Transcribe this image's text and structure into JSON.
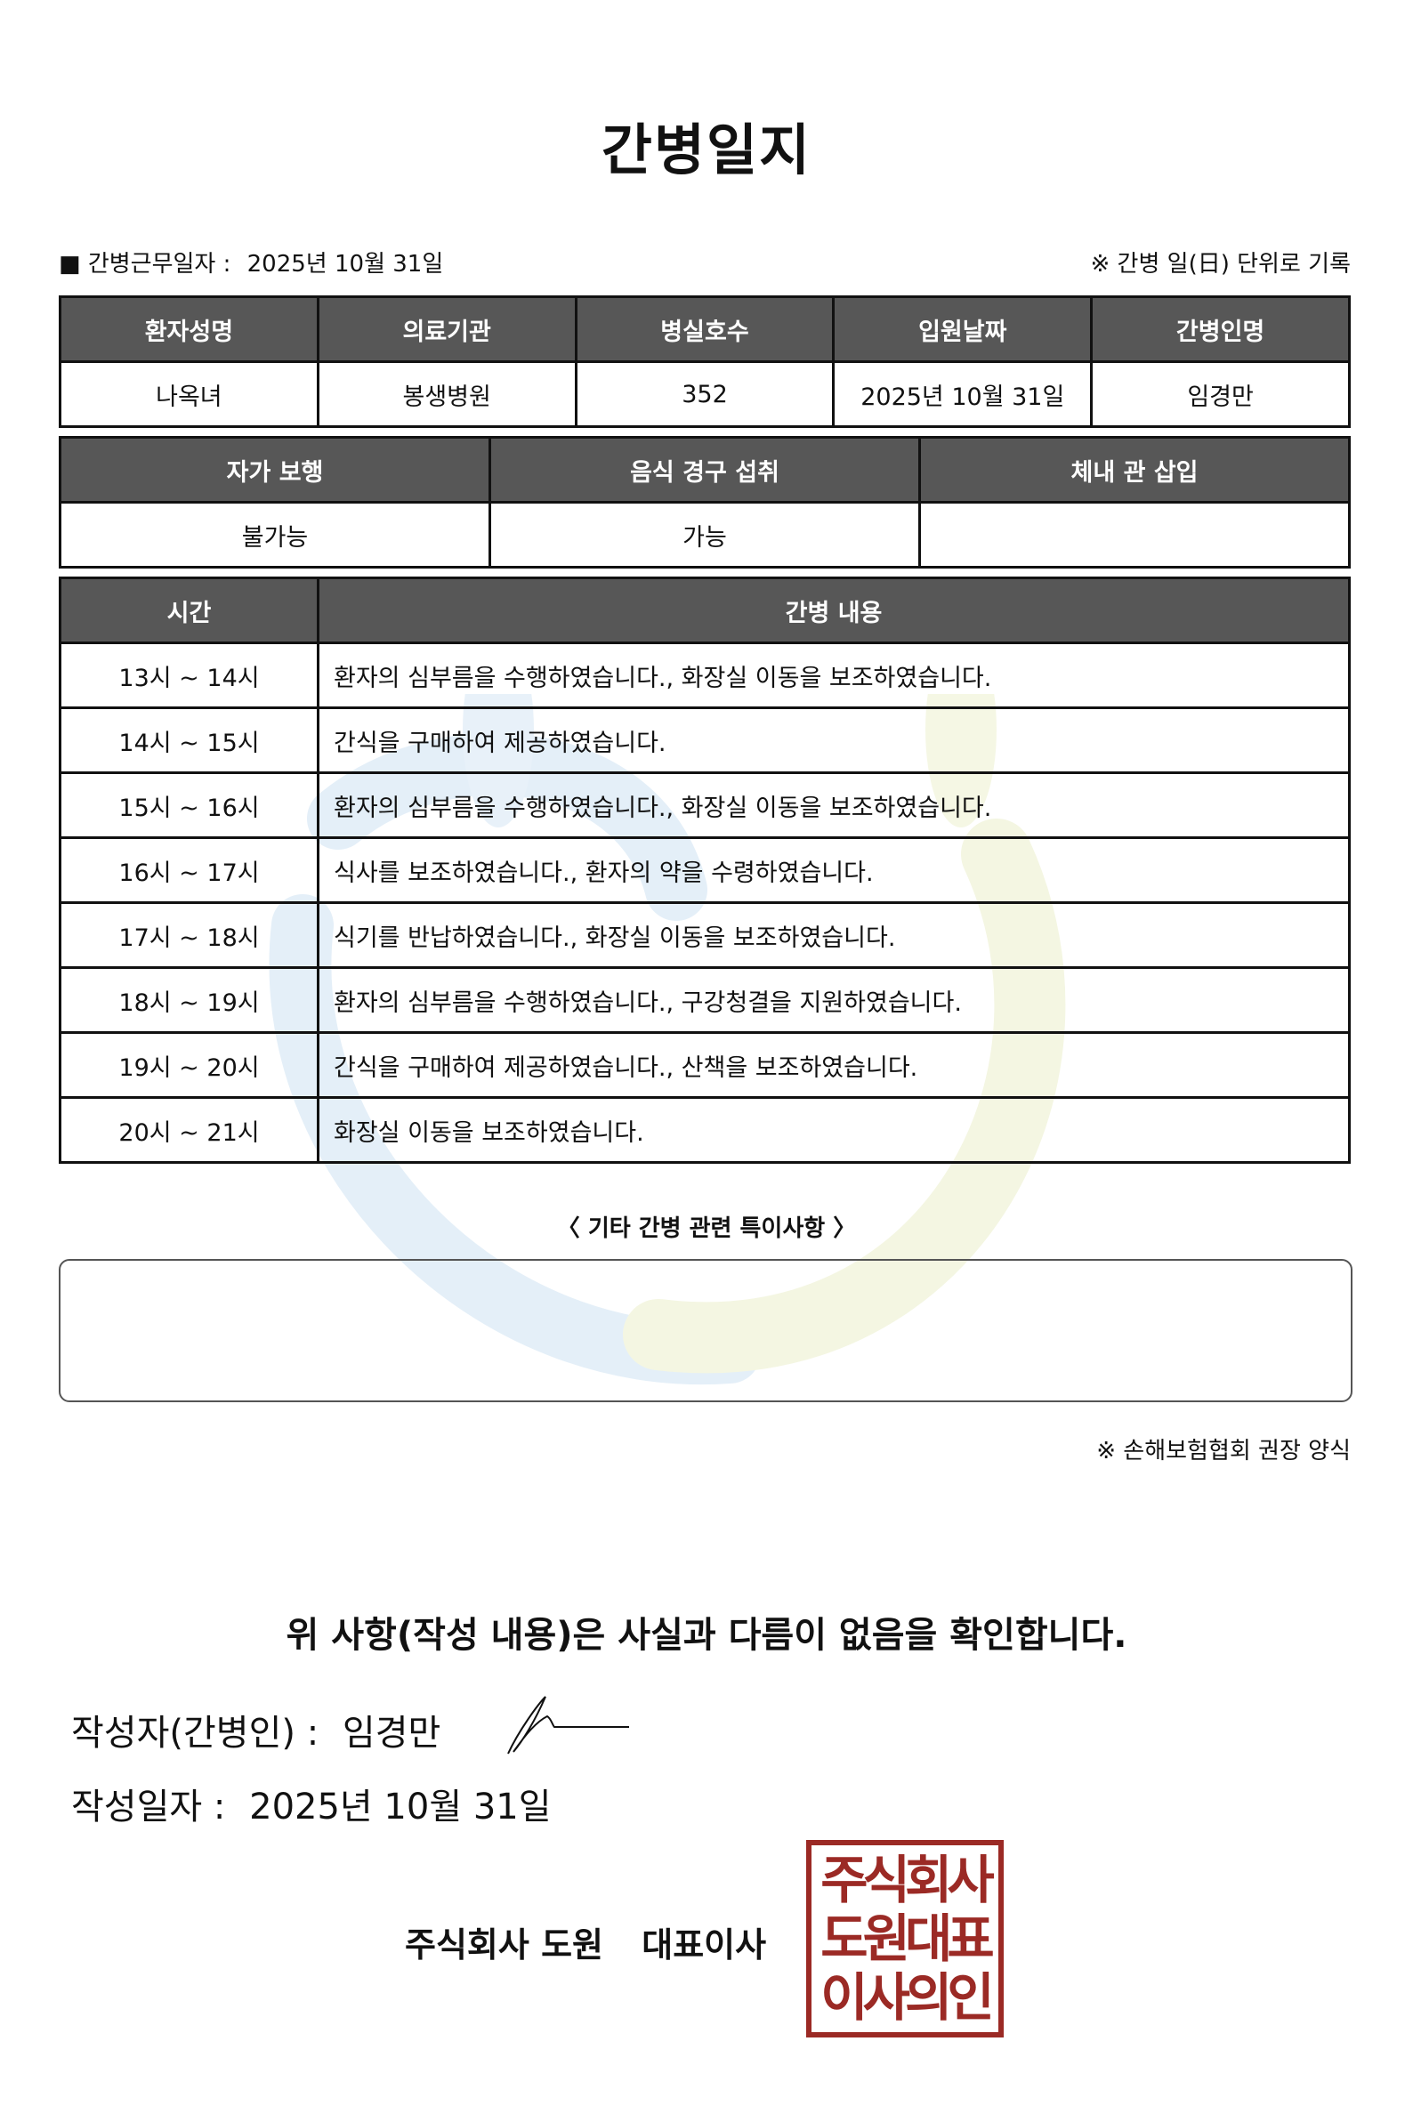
{
  "title": "간병일지",
  "meta": {
    "work_date_label": "■ 간병근무일자 :",
    "work_date": "2025년 10월 31일",
    "unit_note": "※ 간병 일(日) 단위로 기록"
  },
  "info_table": {
    "headers": [
      "환자성명",
      "의료기관",
      "병실호수",
      "입원날짜",
      "간병인명"
    ],
    "values": [
      "나옥녀",
      "봉생병원",
      "352",
      "2025년 10월 31일",
      "임경만"
    ]
  },
  "status_table": {
    "headers": [
      "자가 보행",
      "음식 경구 섭취",
      "체내 관 삽입"
    ],
    "values": [
      "불가능",
      "가능",
      ""
    ]
  },
  "log_table": {
    "headers": [
      "시간",
      "간병 내용"
    ],
    "rows": [
      {
        "time": "13시 ~ 14시",
        "content": "환자의 심부름을 수행하였습니다., 화장실 이동을 보조하였습니다."
      },
      {
        "time": "14시 ~ 15시",
        "content": "간식을 구매하여 제공하였습니다."
      },
      {
        "time": "15시 ~ 16시",
        "content": "환자의 심부름을 수행하였습니다., 화장실 이동을 보조하였습니다."
      },
      {
        "time": "16시 ~ 17시",
        "content": "식사를 보조하였습니다., 환자의 약을 수령하였습니다."
      },
      {
        "time": "17시 ~ 18시",
        "content": "식기를 반납하였습니다., 화장실 이동을 보조하였습니다."
      },
      {
        "time": "18시 ~ 19시",
        "content": "환자의 심부름을 수행하였습니다., 구강청결을 지원하였습니다."
      },
      {
        "time": "19시 ~ 20시",
        "content": "간식을 구매하여 제공하였습니다., 산책을 보조하였습니다."
      },
      {
        "time": "20시 ~ 21시",
        "content": "화장실 이동을 보조하였습니다."
      }
    ]
  },
  "remarks": {
    "label": "〈 기타 간병 관련 특이사항 〉",
    "value": ""
  },
  "footnote": "※ 손해보험협회 권장 양식",
  "confirmation": "위 사항(작성 내용)은 사실과 다름이 없음을 확인합니다.",
  "writer": {
    "label": "작성자(간병인) :",
    "name": "임경만"
  },
  "written_date": {
    "label": "작성일자 :",
    "value": "2025년 10월 31일"
  },
  "company": {
    "name": "주식회사 도원",
    "title": "대표이사"
  },
  "stamp": {
    "text": "주식회사도원대표이사의인",
    "color": "#9b2a25"
  },
  "colors": {
    "header_bg": "#575757",
    "watermark_blue": "#d6e8f5",
    "watermark_yellow": "#f3f5d6"
  }
}
